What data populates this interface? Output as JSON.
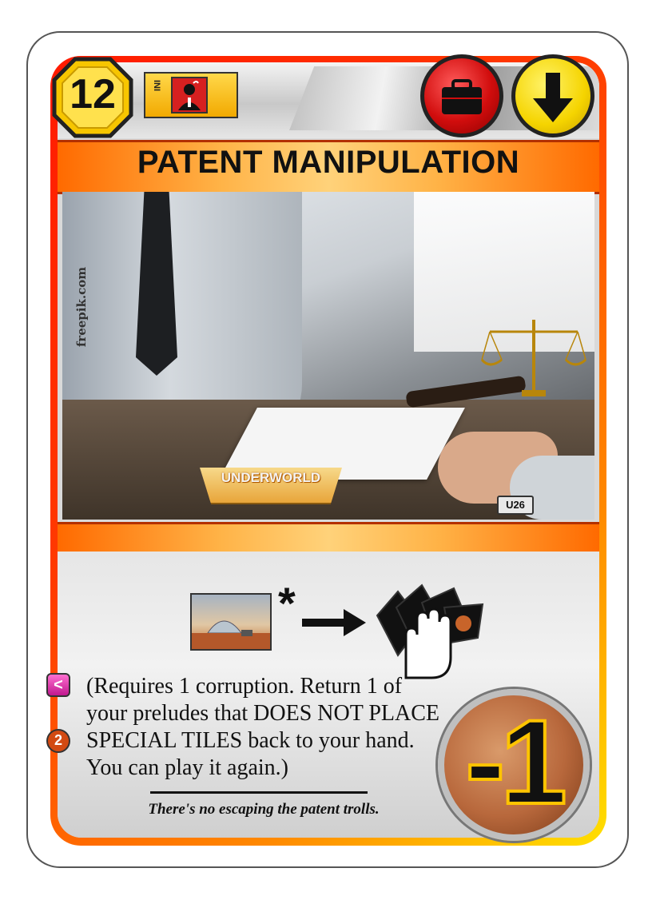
{
  "card": {
    "cost": "12",
    "requirement_label": "INI",
    "title": "PATENT MANIPULATION",
    "watermark": "freepik.com",
    "expansion": "UNDERWORLD",
    "card_id": "U26",
    "effect_text": "(Requires 1 corruption. Return 1 of your preludes that DOES NOT PLACE SPECIAL TILES back to your hand. You can play it again.)",
    "asterisk": "*",
    "flavor_text": "There's no escaping the patent trolls.",
    "victory_points": "-1",
    "side_icon_pink": "<",
    "side_icon_orange": "2",
    "tags": [
      "briefcase-tag-icon",
      "event-arrow-down-tag-icon"
    ],
    "colors": {
      "frame_red": "#ff1a00",
      "frame_yellow": "#ffe000",
      "title_orange": "#ffb347",
      "tag_red": "#d10d0d",
      "tag_yellow": "#f5d400"
    }
  }
}
